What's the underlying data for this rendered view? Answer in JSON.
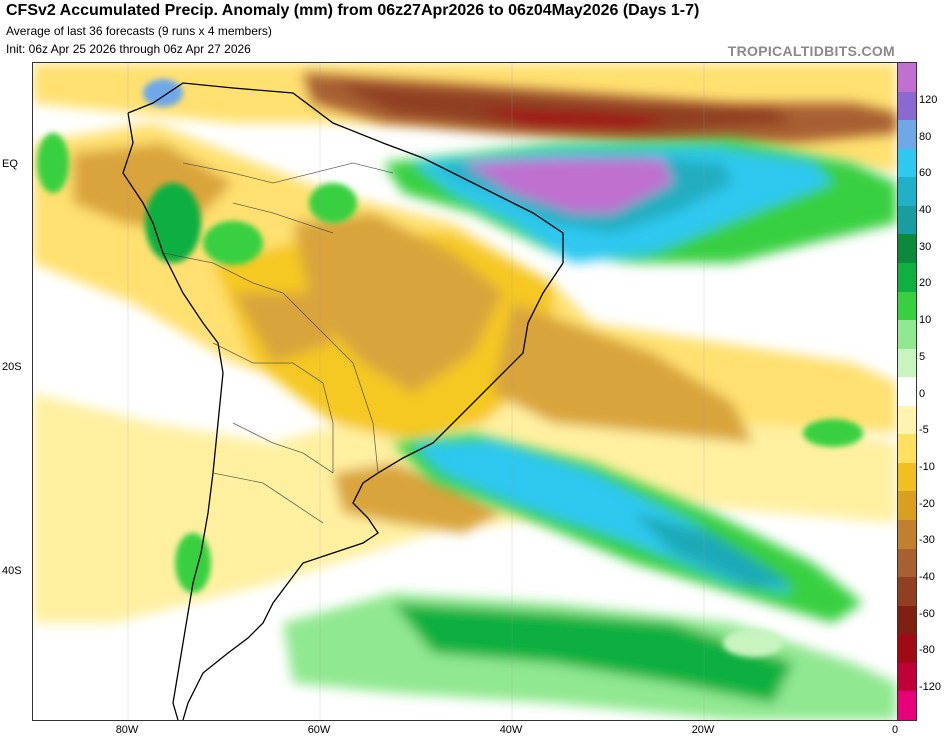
{
  "header": {
    "title": "CFSv2 Accumulated Precip. Anomaly (mm) from 06z27Apr2026 to 06z04May2026 (Days 1-7)",
    "line2": "Average of last 36 forecasts (9 runs x 4 members)",
    "line3": "Init: 06z Apr 25 2026 through 06z Apr 27 2026",
    "brand": "TROPICALTIDBITS.COM"
  },
  "map": {
    "region": "South America",
    "lat_labels": [
      "EQ",
      "20S",
      "40S"
    ],
    "lon_labels": [
      "80W",
      "60W",
      "40W",
      "20W",
      "0"
    ]
  },
  "colorbar": {
    "labels": [
      "120",
      "80",
      "60",
      "40",
      "30",
      "20",
      "10",
      "5",
      "0",
      "-5",
      "-10",
      "-20",
      "-30",
      "-40",
      "-60",
      "-80",
      "-120"
    ],
    "colors": [
      "#c070d0",
      "#8a6ad0",
      "#6ea8e8",
      "#2ec8f0",
      "#22b0c8",
      "#1a9ca0",
      "#0a8a3a",
      "#10b040",
      "#38d040",
      "#90e890",
      "#c8f4c0",
      "#ffffff",
      "#fff5b0",
      "#ffe060",
      "#f0c020",
      "#d8a020",
      "#c08030",
      "#a86030",
      "#904020",
      "#802010",
      "#a00a14",
      "#c00038",
      "#e8007a"
    ]
  }
}
